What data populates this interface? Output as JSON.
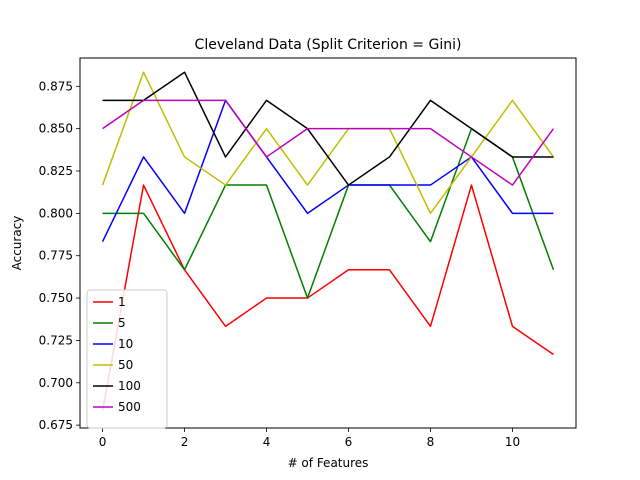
{
  "chart_data": {
    "type": "line",
    "title": "Cleveland Data (Split Criterion = Gini)",
    "xlabel": "# of Features",
    "ylabel": "Accuracy",
    "xlim": [
      -0.55,
      11.55
    ],
    "ylim": [
      0.6733,
      0.8917
    ],
    "xticks": [
      0,
      2,
      4,
      6,
      8,
      10
    ],
    "yticks": [
      0.675,
      0.7,
      0.725,
      0.75,
      0.775,
      0.8,
      0.825,
      0.85,
      0.875
    ],
    "ytick_labels": [
      "0.675",
      "0.700",
      "0.725",
      "0.750",
      "0.775",
      "0.800",
      "0.825",
      "0.850",
      "0.875"
    ],
    "grid": false,
    "legend_position": "lower-left",
    "x": [
      0,
      1,
      2,
      3,
      4,
      5,
      6,
      7,
      8,
      9,
      10,
      11
    ],
    "series": [
      {
        "name": "1",
        "color": "#ff0000",
        "values": [
          0.6833,
          0.8167,
          0.7667,
          0.7333,
          0.75,
          0.75,
          0.7667,
          0.7667,
          0.7333,
          0.8167,
          0.7333,
          0.7167
        ]
      },
      {
        "name": "5",
        "color": "#008000",
        "values": [
          0.8,
          0.8,
          0.7667,
          0.8167,
          0.8167,
          0.75,
          0.8167,
          0.8167,
          0.7833,
          0.85,
          0.8333,
          0.7667
        ]
      },
      {
        "name": "10",
        "color": "#0000ff",
        "values": [
          0.7833,
          0.8333,
          0.8,
          0.8667,
          0.8333,
          0.8,
          0.8167,
          0.8167,
          0.8167,
          0.8333,
          0.8,
          0.8
        ]
      },
      {
        "name": "50",
        "color": "#bfbf00",
        "values": [
          0.8167,
          0.8833,
          0.8333,
          0.8167,
          0.85,
          0.8167,
          0.85,
          0.85,
          0.8,
          0.8333,
          0.8667,
          0.8333
        ]
      },
      {
        "name": "100",
        "color": "#000000",
        "values": [
          0.8667,
          0.8667,
          0.8833,
          0.8333,
          0.8667,
          0.85,
          0.8167,
          0.8333,
          0.8667,
          0.85,
          0.8333,
          0.8333
        ]
      },
      {
        "name": "500",
        "color": "#bf00bf",
        "values": [
          0.85,
          0.8667,
          0.8667,
          0.8667,
          0.8333,
          0.85,
          0.85,
          0.85,
          0.85,
          0.8333,
          0.8167,
          0.85
        ]
      }
    ]
  }
}
